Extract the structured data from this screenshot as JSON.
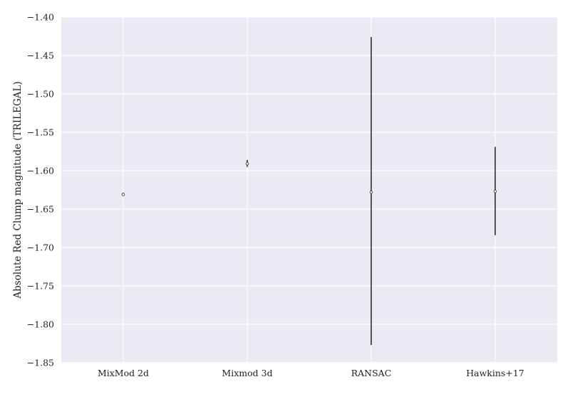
{
  "chart_data": {
    "type": "scatter",
    "title": "",
    "xlabel": "",
    "ylabel": "Absolute Red Clump magnitude (TRILEGAL)",
    "categories": [
      "MixMod 2d",
      "Mixmod 3d",
      "RANSAC",
      "Hawkins+17"
    ],
    "values": [
      -1.631,
      -1.591,
      -1.628,
      -1.627
    ],
    "error_low": [
      -1.633,
      -1.595,
      -1.827,
      -1.684
    ],
    "error_high": [
      -1.629,
      -1.586,
      -1.426,
      -1.569
    ],
    "ylim": [
      -1.85,
      -1.4
    ],
    "yticks": [
      -1.4,
      -1.45,
      -1.5,
      -1.55,
      -1.6,
      -1.65,
      -1.7,
      -1.75,
      -1.8,
      -1.85
    ],
    "ytick_labels": [
      "−1.40",
      "−1.45",
      "−1.50",
      "−1.55",
      "−1.60",
      "−1.65",
      "−1.70",
      "−1.75",
      "−1.80",
      "−1.85"
    ],
    "grid": true,
    "legend": "none",
    "colors": {
      "background": "#eaeaf2",
      "grid": "#ffffff",
      "errorbar": "#000000",
      "marker_fill": "#ffffff",
      "marker_edge": "#333333"
    }
  }
}
